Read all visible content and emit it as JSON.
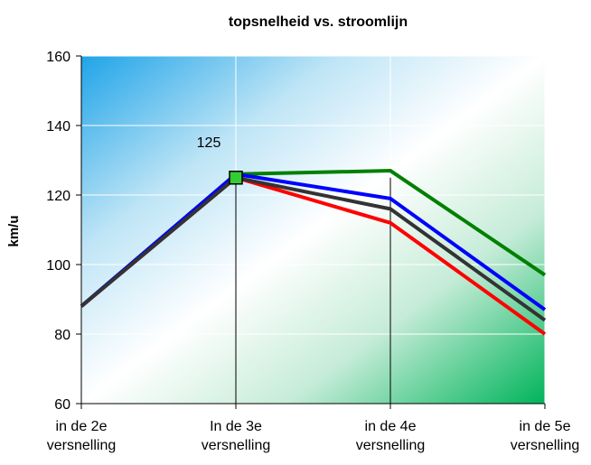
{
  "chart_data": {
    "type": "line",
    "title": "topsnelheid vs. stroomlijn",
    "xlabel": "",
    "ylabel": "km/u",
    "ylim": [
      60,
      160
    ],
    "yticks": [
      60,
      80,
      100,
      120,
      140,
      160
    ],
    "categories": [
      [
        "in de 2e",
        "versnelling"
      ],
      [
        "In de 3e",
        "versnelling"
      ],
      [
        "in de 4e",
        "versnelling"
      ],
      [
        "in de 5e",
        "versnelling"
      ]
    ],
    "series": [
      {
        "color": "#008000",
        "values": [
          88,
          126,
          127,
          97
        ]
      },
      {
        "color": "#ff0000",
        "values": [
          88,
          125,
          112,
          80
        ]
      },
      {
        "color": "#0000ff",
        "values": [
          88,
          126,
          119,
          87
        ]
      },
      {
        "color": "#333333",
        "values": [
          88,
          125,
          116,
          84
        ]
      }
    ],
    "highlight": {
      "category_index": 1,
      "value": 125,
      "label": "125",
      "color": "#33cc33"
    },
    "grid": true,
    "legend": "none"
  }
}
